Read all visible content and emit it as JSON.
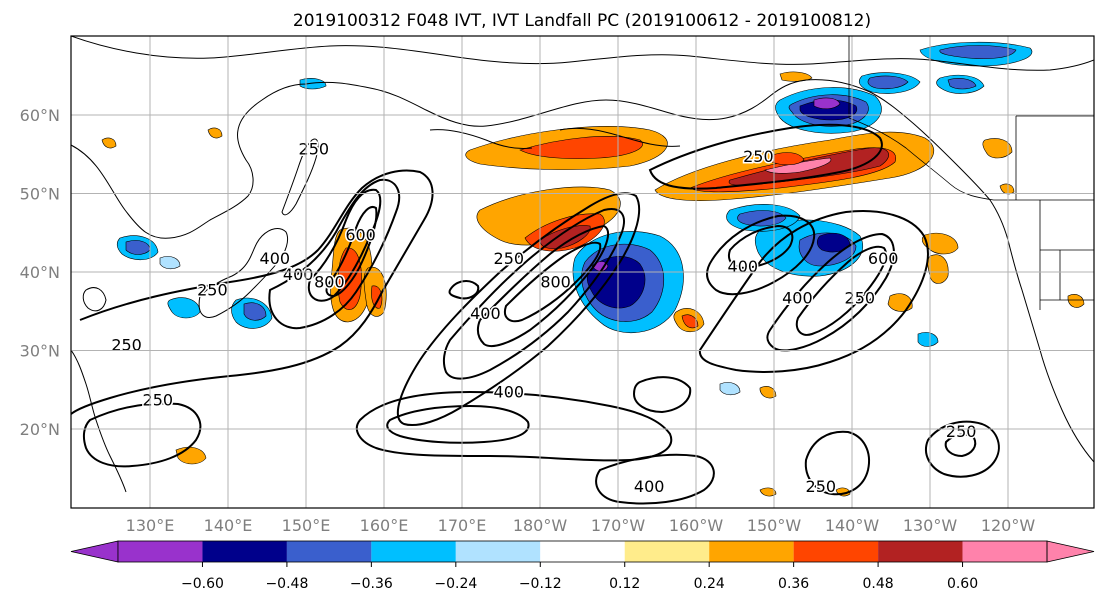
{
  "title": "2019100312 F048 IVT, IVT Landfall PC (2019100612 - 2019100812)",
  "map": {
    "lon_ticks": [
      "130°E",
      "140°E",
      "150°E",
      "160°E",
      "170°E",
      "180°W",
      "170°W",
      "160°W",
      "150°W",
      "140°W",
      "130°W",
      "120°W"
    ],
    "lat_ticks": [
      "60°N",
      "50°N",
      "40°N",
      "30°N",
      "20°N"
    ],
    "fill_field": "IVT Landfall PC",
    "contour_field": "IVT",
    "contour_labels": [
      {
        "text": "250",
        "lon": 151,
        "lat": 55
      },
      {
        "text": "400",
        "lon": 146,
        "lat": 41
      },
      {
        "text": "600",
        "lon": 157,
        "lat": 44
      },
      {
        "text": "400",
        "lon": 149,
        "lat": 39
      },
      {
        "text": "800",
        "lon": 153,
        "lat": 38
      },
      {
        "text": "250",
        "lon": 138,
        "lat": 37
      },
      {
        "text": "250",
        "lon": 127,
        "lat": 30
      },
      {
        "text": "250",
        "lon": 131,
        "lat": 23
      },
      {
        "text": "250",
        "lon": 176,
        "lat": 41
      },
      {
        "text": "800",
        "lon": 182,
        "lat": 38
      },
      {
        "text": "400",
        "lon": 173,
        "lat": 34
      },
      {
        "text": "400",
        "lon": 176,
        "lat": 24
      },
      {
        "text": "400",
        "lon": 194,
        "lat": 12
      },
      {
        "text": "250",
        "lon": 208,
        "lat": 54
      },
      {
        "text": "400",
        "lon": 206,
        "lat": 40
      },
      {
        "text": "400",
        "lon": 213,
        "lat": 36
      },
      {
        "text": "600",
        "lon": 224,
        "lat": 41
      },
      {
        "text": "250",
        "lon": 221,
        "lat": 36
      },
      {
        "text": "250",
        "lon": 216,
        "lat": 12
      },
      {
        "text": "250",
        "lon": 234,
        "lat": 19
      }
    ]
  },
  "colorbar": {
    "tick_labels": [
      "−0.60",
      "−0.48",
      "−0.36",
      "−0.24",
      "−0.12",
      "0.12",
      "0.24",
      "0.36",
      "0.48",
      "0.60"
    ],
    "colors": [
      "#9932cc",
      "#00008b",
      "#3a5fcd",
      "#00bfff",
      "#b0e2ff",
      "#ffffff",
      "#ffec8b",
      "#ffa500",
      "#ff4500",
      "#b22222",
      "#ff82ab"
    ]
  }
}
